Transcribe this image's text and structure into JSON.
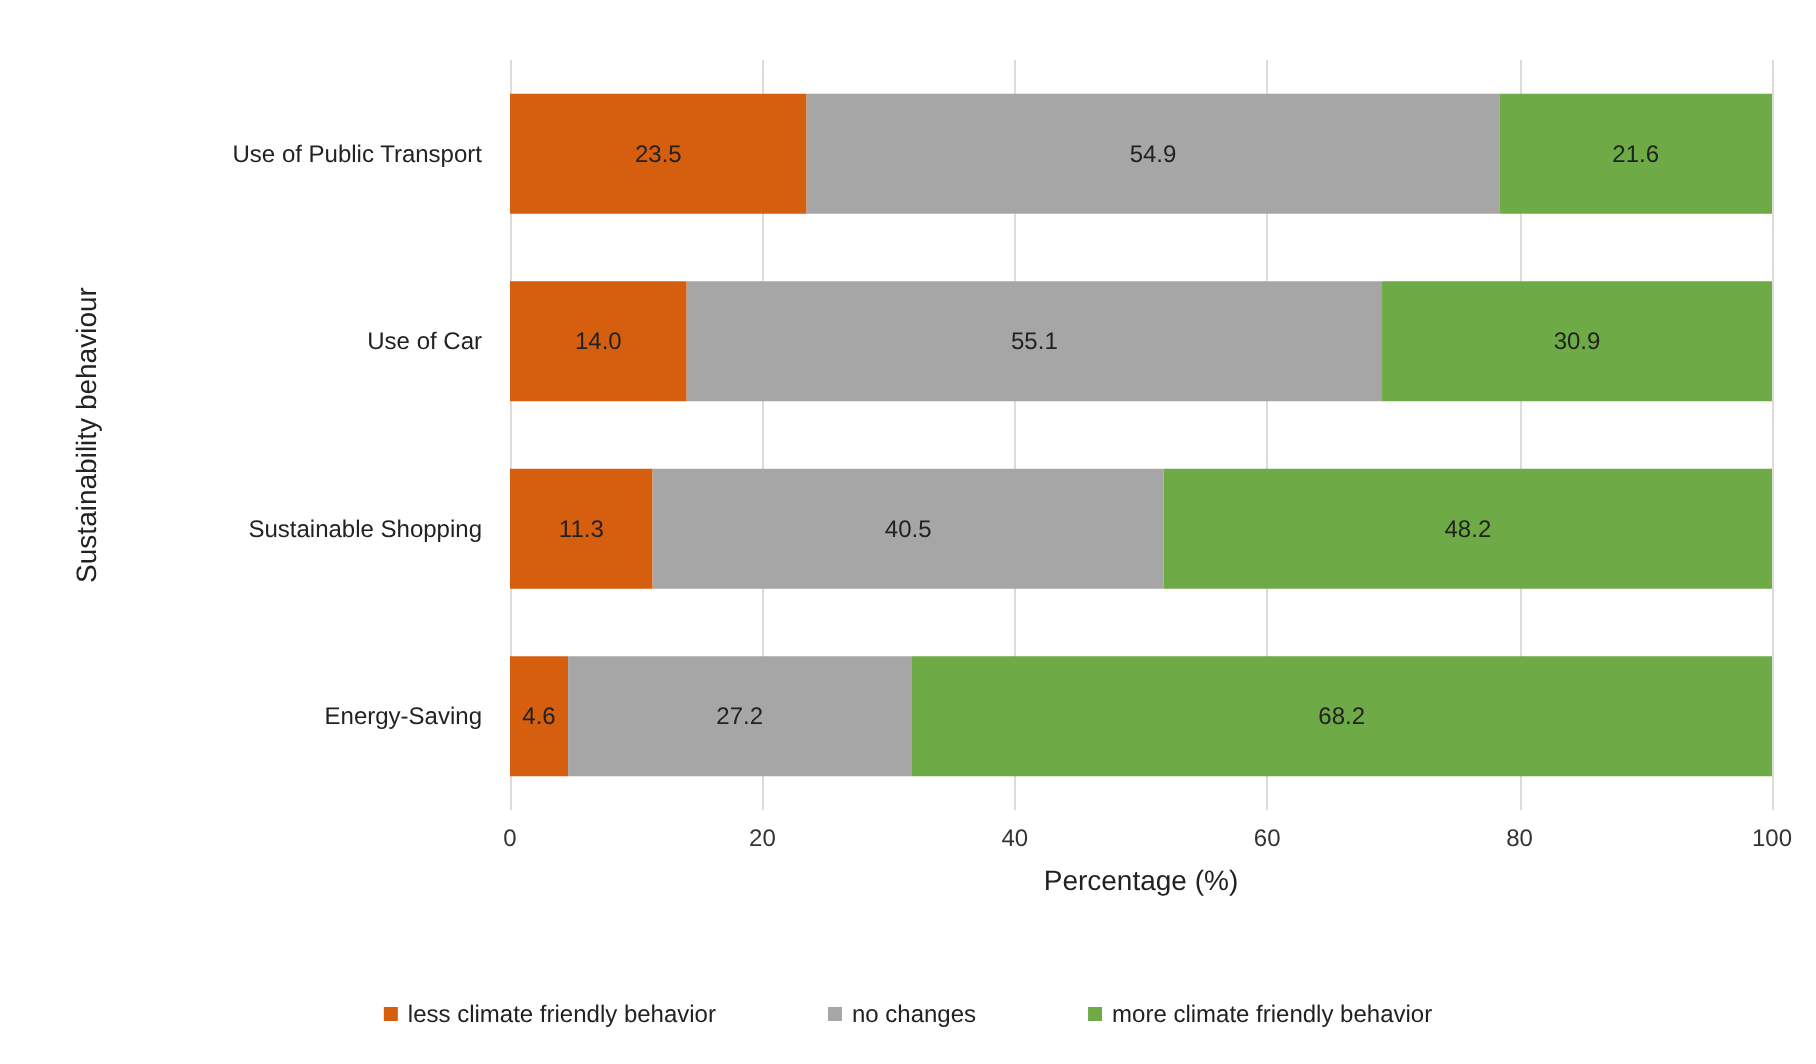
{
  "chart_data": {
    "type": "bar",
    "orientation": "horizontal",
    "stacked": true,
    "xlabel": "Percentage (%)",
    "ylabel": "Sustainability behaviour",
    "categories": [
      "Use of Public Transport",
      "Use of Car",
      "Sustainable Shopping",
      "Energy-Saving"
    ],
    "series": [
      {
        "name": "less climate friendly behavior",
        "color": "#d55e0f",
        "values": [
          23.5,
          14.0,
          11.3,
          4.6
        ],
        "value_labels": [
          "23.5",
          "14.0",
          "11.3",
          "4.6"
        ]
      },
      {
        "name": "no changes",
        "color": "#a6a6a6",
        "values": [
          54.9,
          55.1,
          40.5,
          27.2
        ],
        "value_labels": [
          "54.9",
          "55.1",
          "40.5",
          "27.2"
        ]
      },
      {
        "name": "more climate friendly behavior",
        "color": "#6eaa45",
        "values": [
          21.6,
          30.9,
          48.2,
          68.2
        ],
        "value_labels": [
          "21.6",
          "30.9",
          "48.2",
          "68.2"
        ]
      }
    ],
    "xlim": [
      0,
      100
    ],
    "xticks": [
      0,
      20,
      40,
      60,
      80,
      100
    ],
    "grid": "x",
    "legend": "bottom"
  }
}
